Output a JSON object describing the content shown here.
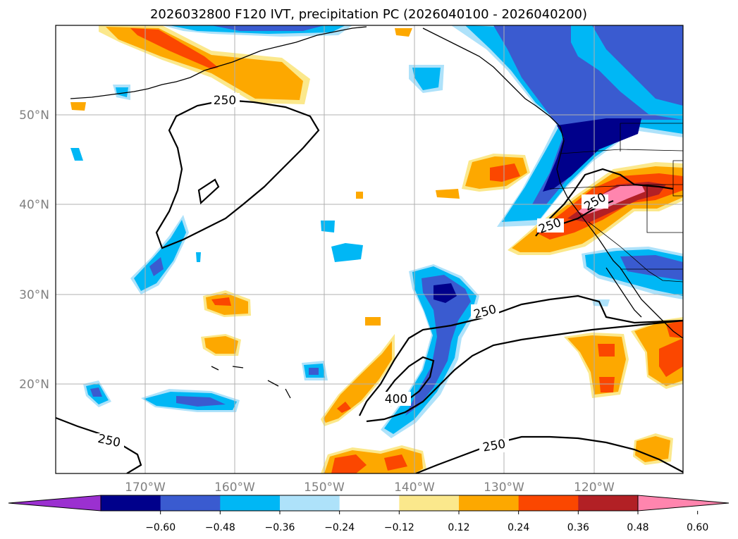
{
  "title": "2026032800 F120 IVT, precipitation PC (2026040100 - 2026040200)",
  "lat_labels": [
    "50°N",
    "40°N",
    "30°N",
    "20°N"
  ],
  "lon_labels": [
    "170°W",
    "160°W",
    "150°W",
    "140°W",
    "130°W",
    "120°W"
  ],
  "contour_labels": [
    "250",
    "250",
    "250",
    "250",
    "250",
    "250",
    "400"
  ],
  "colorbar": {
    "ticks": [
      "−0.60",
      "−0.48",
      "−0.36",
      "−0.24",
      "−0.12",
      "0.12",
      "0.24",
      "0.36",
      "0.48",
      "0.60"
    ],
    "colors": [
      "#9b30d0",
      "#00008b",
      "#3a5bd0",
      "#00b7f5",
      "#aee2fa",
      "#ffffff",
      "#fbe88c",
      "#fda800",
      "#fb4700",
      "#b22025",
      "#ff85ae"
    ]
  },
  "fill_colors": {
    "neg1": "#00008b",
    "neg2": "#3a5bd0",
    "neg3": "#00b7f5",
    "neg4": "#aee2fa",
    "pos1": "#fbe88c",
    "pos2": "#fda800",
    "pos3": "#fb4700",
    "pos4": "#b22025",
    "pos5": "#ff85ae"
  }
}
